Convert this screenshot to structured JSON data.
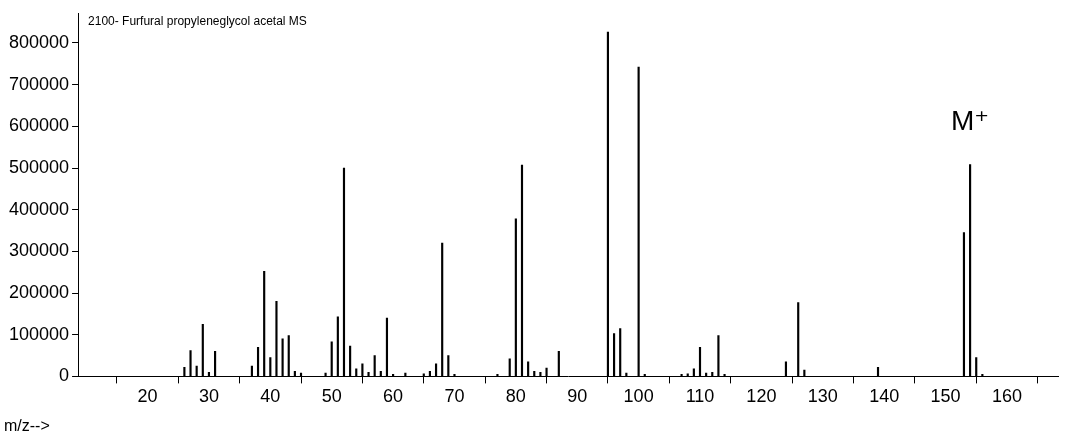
{
  "chart_data": {
    "type": "bar",
    "title": "2100- Furfural propyleneglycol acetal MS",
    "x_label": "m/z-->",
    "x": [
      26,
      27,
      28,
      29,
      30,
      31,
      37,
      38,
      39,
      40,
      41,
      42,
      43,
      44,
      45,
      49,
      50,
      51,
      52,
      53,
      54,
      55,
      56,
      57,
      58,
      59,
      60,
      62,
      65,
      66,
      67,
      68,
      69,
      70,
      77,
      79,
      80,
      81,
      82,
      83,
      84,
      85,
      87,
      95,
      96,
      97,
      98,
      100,
      101,
      107,
      108,
      109,
      110,
      111,
      112,
      113,
      114,
      124,
      126,
      127,
      139,
      153,
      154,
      155,
      156
    ],
    "values": [
      22000,
      62000,
      25000,
      125000,
      10000,
      60000,
      25000,
      70000,
      252000,
      45000,
      180000,
      90000,
      98000,
      12000,
      8000,
      8000,
      83000,
      143000,
      500000,
      73000,
      18000,
      30000,
      10000,
      50000,
      12000,
      140000,
      5000,
      8000,
      6000,
      12000,
      30000,
      320000,
      50000,
      5000,
      5000,
      42000,
      378000,
      507000,
      35000,
      12000,
      10000,
      20000,
      60000,
      826000,
      103000,
      115000,
      8000,
      742000,
      5000,
      5000,
      6000,
      18000,
      70000,
      8000,
      10000,
      98000,
      5000,
      35000,
      177000,
      15000,
      22000,
      345000,
      508000,
      45000,
      5000
    ],
    "color": "#000000",
    "xlim": [
      14,
      163
    ],
    "xticks": [
      20,
      30,
      40,
      50,
      60,
      70,
      80,
      90,
      100,
      110,
      120,
      130,
      140,
      150,
      160
    ],
    "ylim": [
      0,
      870000
    ],
    "yticks": [
      0,
      100000,
      200000,
      300000,
      400000,
      500000,
      600000,
      700000,
      800000
    ],
    "grid": false,
    "annotations": [
      {
        "text": "M⁺",
        "x": 154,
        "y": 610000
      }
    ]
  }
}
